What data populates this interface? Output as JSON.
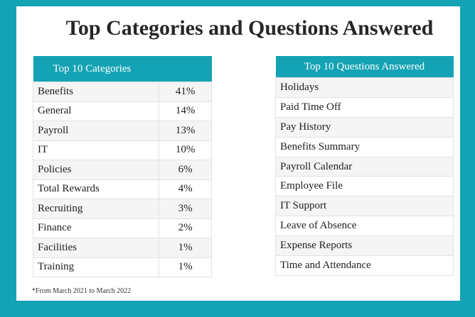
{
  "title": "Top Categories and Questions Answered",
  "categories": {
    "header": "Top 10 Categories",
    "rows": [
      {
        "name": "Benefits",
        "pct": "41%"
      },
      {
        "name": "General",
        "pct": "14%"
      },
      {
        "name": "Payroll",
        "pct": "13%"
      },
      {
        "name": "IT",
        "pct": "10%"
      },
      {
        "name": "Policies",
        "pct": "6%"
      },
      {
        "name": "Total Rewards",
        "pct": "4%"
      },
      {
        "name": "Recruiting",
        "pct": "3%"
      },
      {
        "name": "Finance",
        "pct": "2%"
      },
      {
        "name": "Facilities",
        "pct": "1%"
      },
      {
        "name": "Training",
        "pct": "1%"
      }
    ]
  },
  "questions": {
    "header": "Top 10 Questions Answered",
    "rows": [
      "Holidays",
      "Paid Time Off",
      "Pay History",
      "Benefits Summary",
      "Payroll Calendar",
      "Employee File",
      "IT Support",
      "Leave of Absence",
      "Expense Reports",
      "Time and Attendance"
    ]
  },
  "footnote": "*From March 2021 to March 2022",
  "colors": {
    "accent": "#14a3b4",
    "row_alt": "#f5f5f5"
  }
}
